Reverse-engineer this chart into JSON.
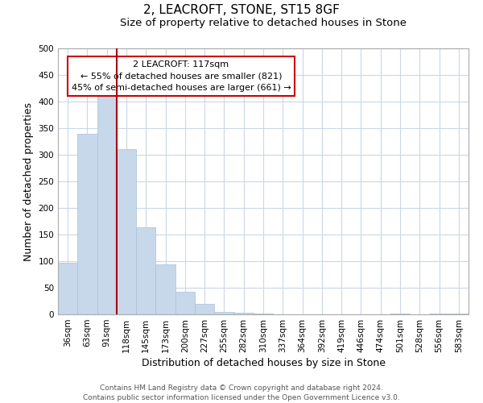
{
  "title": "2, LEACROFT, STONE, ST15 8GF",
  "subtitle": "Size of property relative to detached houses in Stone",
  "xlabel": "Distribution of detached houses by size in Stone",
  "ylabel": "Number of detached properties",
  "bin_labels": [
    "36sqm",
    "63sqm",
    "91sqm",
    "118sqm",
    "145sqm",
    "173sqm",
    "200sqm",
    "227sqm",
    "255sqm",
    "282sqm",
    "310sqm",
    "337sqm",
    "364sqm",
    "392sqm",
    "419sqm",
    "446sqm",
    "474sqm",
    "501sqm",
    "528sqm",
    "556sqm",
    "583sqm"
  ],
  "bar_heights": [
    97,
    340,
    411,
    311,
    163,
    94,
    42,
    19,
    5,
    3,
    2,
    0,
    0,
    0,
    0,
    0,
    0,
    2,
    0,
    2,
    2
  ],
  "bar_color": "#c8d8eb",
  "bar_edge_color": "#a8c0d8",
  "property_line_bin_index": 2,
  "property_line_color": "#aa0000",
  "ylim": [
    0,
    500
  ],
  "yticks": [
    0,
    50,
    100,
    150,
    200,
    250,
    300,
    350,
    400,
    450,
    500
  ],
  "annotation_title": "2 LEACROFT: 117sqm",
  "annotation_line1": "← 55% of detached houses are smaller (821)",
  "annotation_line2": "45% of semi-detached houses are larger (661) →",
  "annotation_box_color": "#ffffff",
  "annotation_box_edge": "#cc0000",
  "footer_line1": "Contains HM Land Registry data © Crown copyright and database right 2024.",
  "footer_line2": "Contains public sector information licensed under the Open Government Licence v3.0.",
  "bg_color": "#ffffff",
  "grid_color": "#c8d8e8",
  "title_fontsize": 11,
  "subtitle_fontsize": 9.5,
  "axis_label_fontsize": 9,
  "tick_fontsize": 7.5,
  "footer_fontsize": 6.5
}
